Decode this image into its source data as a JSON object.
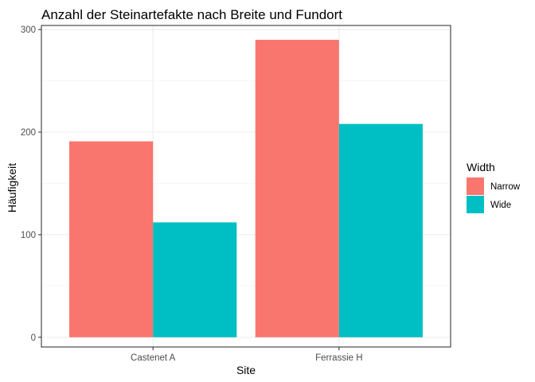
{
  "chart_data": {
    "type": "bar",
    "title": "Anzahl der Steinartefakte nach Breite und Fundort",
    "xlabel": "Site",
    "ylabel": "Häufigkeit",
    "categories": [
      "Castenet A",
      "Ferrassie H"
    ],
    "series": [
      {
        "name": "Narrow",
        "values": [
          191,
          290
        ],
        "color": "#F8766D"
      },
      {
        "name": "Wide",
        "values": [
          112,
          208
        ],
        "color": "#00BFC4"
      }
    ],
    "yticks": [
      0,
      100,
      200,
      300
    ],
    "ylim": [
      -9.5,
      304
    ],
    "grid": true,
    "legend": {
      "title": "Width",
      "placement": "right"
    }
  }
}
